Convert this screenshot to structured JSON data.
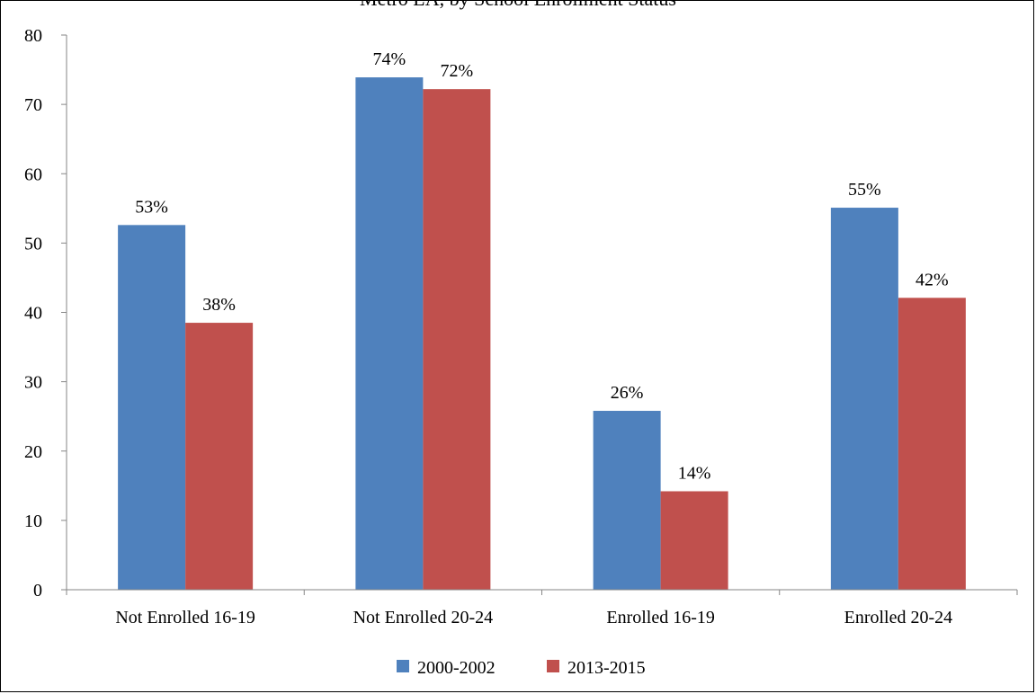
{
  "chart_data": {
    "type": "bar",
    "title": "Metro LA, by School Enrollment Status",
    "xlabel": "",
    "ylabel": "",
    "ylim": [
      0,
      80
    ],
    "yticks": [
      0,
      10,
      20,
      30,
      40,
      50,
      60,
      70,
      80
    ],
    "categories": [
      "Not Enrolled 16-19",
      "Not Enrolled 20-24",
      "Enrolled 16-19",
      "Enrolled 20-24"
    ],
    "series": [
      {
        "name": "2000-2002",
        "color": "#4f81bd",
        "values": [
          52.6,
          73.9,
          25.8,
          55.1
        ],
        "labels": [
          "53%",
          "74%",
          "26%",
          "55%"
        ]
      },
      {
        "name": "2013-2015",
        "color": "#c0504d",
        "values": [
          38.5,
          72.2,
          14.2,
          42.1
        ],
        "labels": [
          "38%",
          "72%",
          "14%",
          "42%"
        ]
      }
    ],
    "grid": false,
    "legend": "bottom"
  }
}
